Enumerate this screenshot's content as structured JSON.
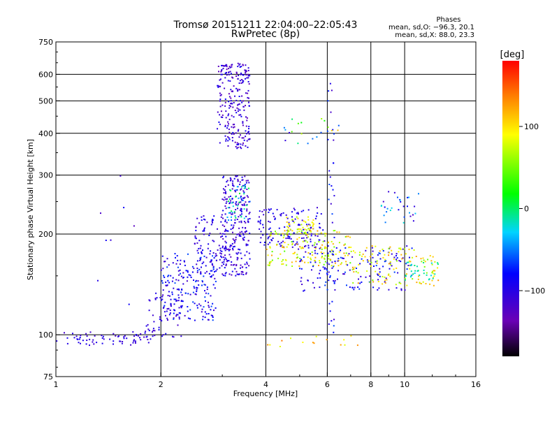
{
  "chart_data": {
    "type": "scatter",
    "title": "Tromsø 20151211 22:04:00–22:05:43",
    "subtitle": "RwPretec (8p)",
    "xlabel": "Frequency [MHz]",
    "ylabel": "Stationary phase Virtual Height [km]",
    "x_scale": "log",
    "y_scale": "log",
    "xlim": [
      1,
      16
    ],
    "ylim": [
      75,
      750
    ],
    "x_ticks": [
      1,
      2,
      4,
      6,
      8,
      10,
      16
    ],
    "x_tick_labels": [
      "1",
      "2",
      "4",
      "6",
      "8",
      "10",
      "16"
    ],
    "y_ticks": [
      75,
      100,
      200,
      300,
      400,
      500,
      600,
      750
    ],
    "y_tick_labels": [
      "75",
      "100",
      "200",
      "300",
      "400",
      "500",
      "600",
      "750"
    ],
    "grid": true,
    "stats": {
      "heading": "Phases",
      "line_o": "mean, sd,O: −96.3, 20.1",
      "line_x": "mean, sd,X: 88.0, 23.3"
    },
    "colorbar": {
      "unit_label": "[deg]",
      "range": [
        -180,
        180
      ],
      "tick_values": [
        100,
        0,
        -100
      ],
      "tick_labels": [
        "100",
        "0",
        "−100"
      ]
    },
    "clusters": [
      {
        "f": [
          1.0,
          1.9
        ],
        "h": [
          93,
          102
        ],
        "n": 70,
        "phase": [
          -120,
          -90
        ]
      },
      {
        "f": [
          1.8,
          2.3
        ],
        "h": [
          98,
          135
        ],
        "n": 60,
        "phase": [
          -120,
          -85
        ]
      },
      {
        "f": [
          2.0,
          2.9
        ],
        "h": [
          110,
          175
        ],
        "n": 200,
        "phase": [
          -120,
          -60
        ]
      },
      {
        "f": [
          2.5,
          3.1
        ],
        "h": [
          150,
          230
        ],
        "n": 100,
        "phase": [
          -120,
          -80
        ]
      },
      {
        "f": [
          3.0,
          3.6
        ],
        "h": [
          150,
          300
        ],
        "n": 260,
        "phase": [
          -130,
          -80
        ]
      },
      {
        "f": [
          3.1,
          3.6
        ],
        "h": [
          220,
          280
        ],
        "n": 40,
        "phase": [
          -60,
          10
        ]
      },
      {
        "f": [
          2.9,
          3.6
        ],
        "h": [
          360,
          650
        ],
        "n": 240,
        "phase": [
          -135,
          -85
        ]
      },
      {
        "f": [
          3.8,
          5.9
        ],
        "h": [
          180,
          240
        ],
        "n": 140,
        "phase": [
          -120,
          -80
        ]
      },
      {
        "f": [
          4.5,
          5.5
        ],
        "h": [
          200,
          225
        ],
        "n": 50,
        "phase": [
          60,
          110
        ]
      },
      {
        "f": [
          4.0,
          7.0
        ],
        "h": [
          160,
          205
        ],
        "n": 160,
        "phase": [
          40,
          130
        ]
      },
      {
        "f": [
          5.0,
          10.5
        ],
        "h": [
          135,
          185
        ],
        "n": 150,
        "phase": [
          -120,
          -60
        ]
      },
      {
        "f": [
          7.0,
          12.5
        ],
        "h": [
          140,
          185
        ],
        "n": 120,
        "phase": [
          50,
          130
        ]
      },
      {
        "f": [
          10.0,
          12.5
        ],
        "h": [
          145,
          165
        ],
        "n": 30,
        "phase": [
          -30,
          0
        ]
      },
      {
        "f": [
          6.0,
          6.3
        ],
        "h": [
          100,
          600
        ],
        "n": 40,
        "phase": [
          -120,
          -60
        ]
      },
      {
        "f": [
          8.5,
          11.0
        ],
        "h": [
          215,
          270
        ],
        "n": 30,
        "phase": [
          -120,
          -20
        ]
      },
      {
        "f": [
          4.5,
          6.5
        ],
        "h": [
          370,
          450
        ],
        "n": 20,
        "phase": [
          -120,
          120
        ]
      },
      {
        "f": [
          4.0,
          7.5
        ],
        "h": [
          90,
          100
        ],
        "n": 15,
        "phase": [
          80,
          140
        ]
      },
      {
        "f": [
          1.3,
          1.7
        ],
        "h": [
          120,
          330
        ],
        "n": 8,
        "phase": [
          -130,
          -80
        ]
      }
    ]
  }
}
